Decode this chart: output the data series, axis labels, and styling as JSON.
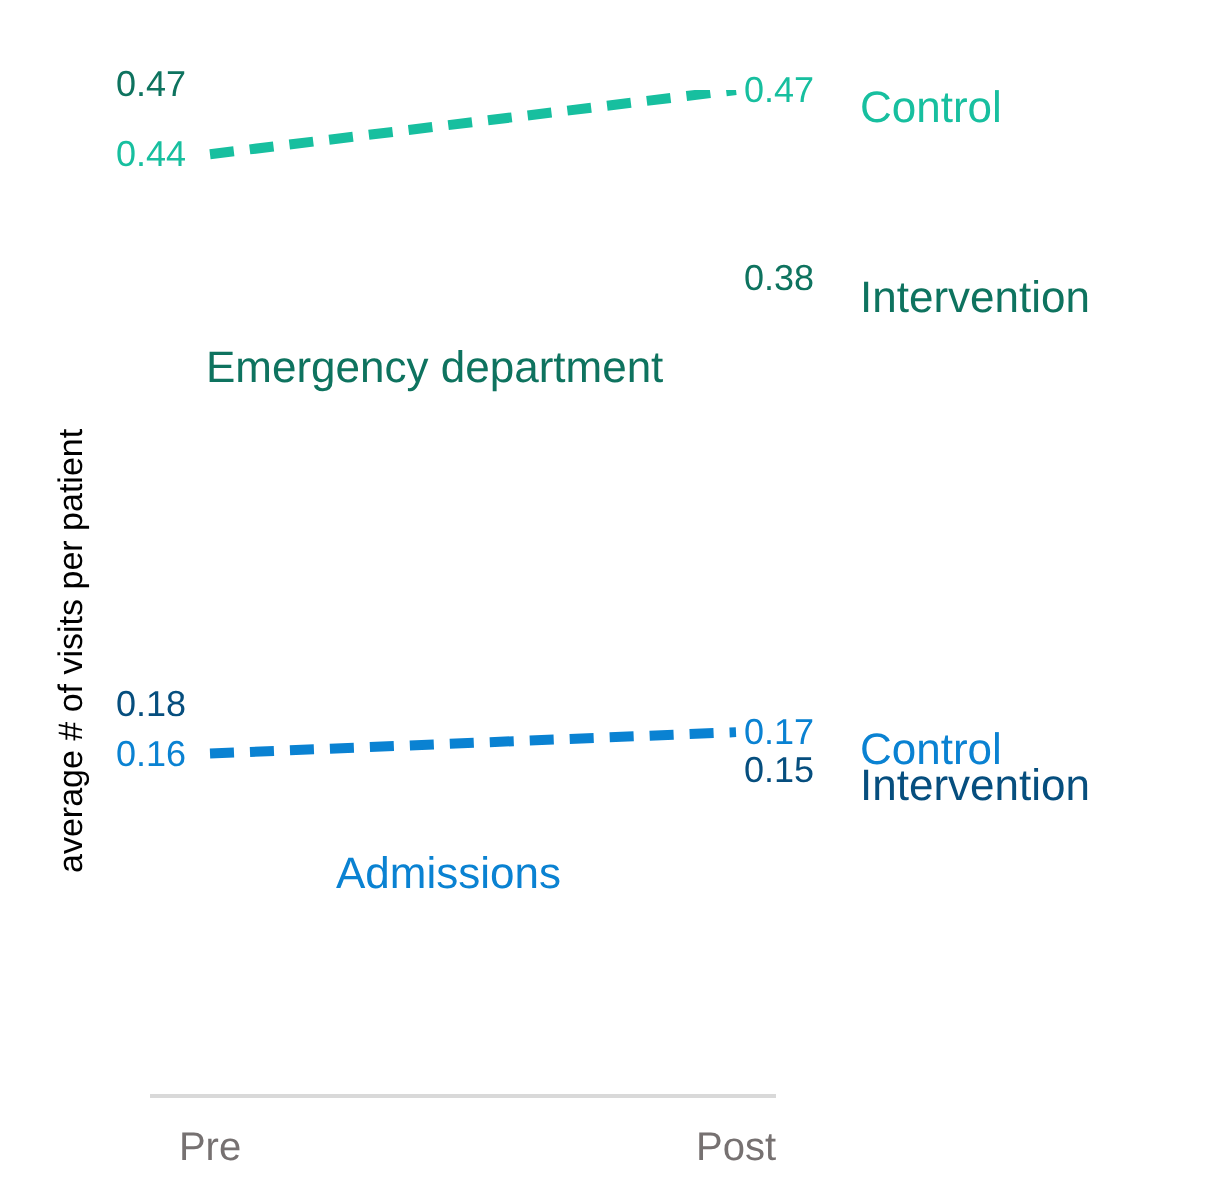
{
  "chart_data": {
    "type": "line",
    "ylabel": "average # of visits per patient",
    "categories": [
      "Pre",
      "Post"
    ],
    "tick_labels": "x",
    "line_style": "dashed",
    "marker": "none",
    "data_labels": true,
    "series": [
      {
        "name": "Control",
        "color": "#17bf9f",
        "values": [
          0.44,
          0.47
        ]
      },
      {
        "name": "Control",
        "color": "#0a82d2",
        "values": [
          0.16,
          0.17
        ]
      }
    ],
    "annotations": [
      "0.47",
      "0.38",
      "Intervention",
      "0.18",
      "0.15",
      "Intervention",
      "Emergency department",
      "Admissions"
    ]
  }
}
